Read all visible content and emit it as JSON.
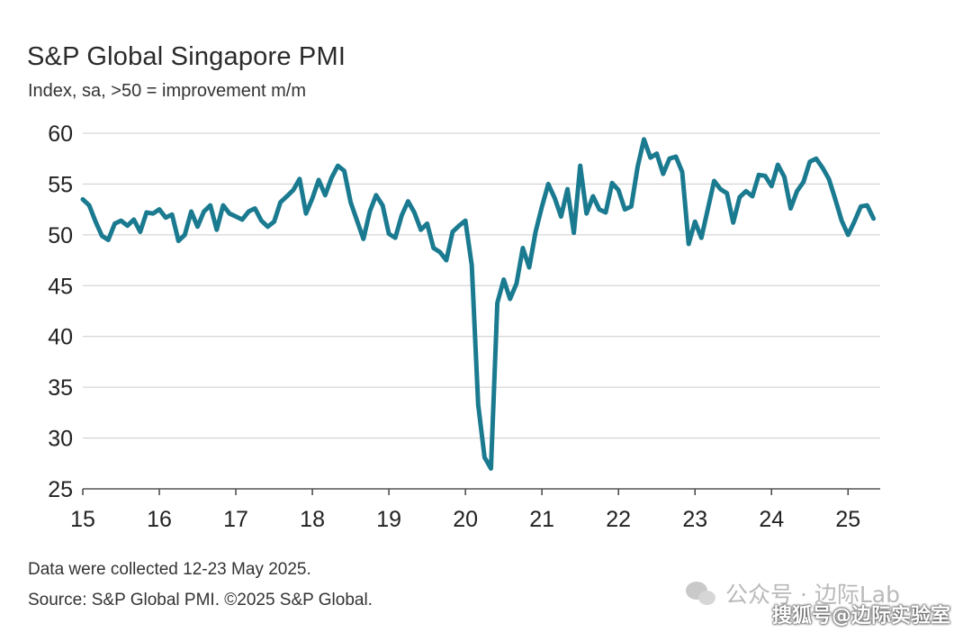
{
  "header": {
    "title": "S&P Global Singapore PMI",
    "subtitle": "Index, sa, >50 = improvement m/m"
  },
  "footer": {
    "note": "Data were collected 12-23 May 2025.",
    "source": "Source: S&P Global PMI. ©2025 S&P Global."
  },
  "watermarks": {
    "wechat": "公众号 · 边际Lab",
    "sohu": "搜狐号@边际实验室"
  },
  "colors": {
    "line": "#1a7a90",
    "grid": "#cccccc",
    "text": "#222222"
  },
  "chart_data": {
    "type": "line",
    "title": "S&P Global Singapore PMI",
    "subtitle": "Index, sa, >50 = improvement m/m",
    "xlabel": "",
    "ylabel": "",
    "ylim": [
      25,
      60
    ],
    "yticks": [
      25,
      30,
      35,
      40,
      45,
      50,
      55,
      60
    ],
    "xlim": [
      2015.0,
      2025.42
    ],
    "xtick_positions": [
      2015,
      2016,
      2017,
      2018,
      2019,
      2020,
      2021,
      2022,
      2023,
      2024,
      2025
    ],
    "xtick_labels": [
      "15",
      "16",
      "17",
      "18",
      "19",
      "20",
      "21",
      "22",
      "23",
      "24",
      "25"
    ],
    "grid": true,
    "legend": "none",
    "series": [
      {
        "x": [
          2015.0,
          2015.083,
          2015.167,
          2015.25,
          2015.333,
          2015.417,
          2015.5,
          2015.583,
          2015.667,
          2015.75,
          2015.833,
          2015.917,
          2016.0,
          2016.083,
          2016.167,
          2016.25,
          2016.333,
          2016.417,
          2016.5,
          2016.583,
          2016.667,
          2016.75,
          2016.833,
          2016.917,
          2017.0,
          2017.083,
          2017.167,
          2017.25,
          2017.333,
          2017.417,
          2017.5,
          2017.583,
          2017.667,
          2017.75,
          2017.833,
          2017.917,
          2018.0,
          2018.083,
          2018.167,
          2018.25,
          2018.333,
          2018.417,
          2018.5,
          2018.583,
          2018.667,
          2018.75,
          2018.833,
          2018.917,
          2019.0,
          2019.083,
          2019.167,
          2019.25,
          2019.333,
          2019.417,
          2019.5,
          2019.583,
          2019.667,
          2019.75,
          2019.833,
          2019.917,
          2020.0,
          2020.083,
          2020.167,
          2020.25,
          2020.333,
          2020.417,
          2020.5,
          2020.583,
          2020.667,
          2020.75,
          2020.833,
          2020.917,
          2021.0,
          2021.083,
          2021.167,
          2021.25,
          2021.333,
          2021.417,
          2021.5,
          2021.583,
          2021.667,
          2021.75,
          2021.833,
          2021.917,
          2022.0,
          2022.083,
          2022.167,
          2022.25,
          2022.333,
          2022.417,
          2022.5,
          2022.583,
          2022.667,
          2022.75,
          2022.833,
          2022.917,
          2023.0,
          2023.083,
          2023.167,
          2023.25,
          2023.333,
          2023.417,
          2023.5,
          2023.583,
          2023.667,
          2023.75,
          2023.833,
          2023.917,
          2024.0,
          2024.083,
          2024.167,
          2024.25,
          2024.333,
          2024.417,
          2024.5,
          2024.583,
          2024.667,
          2024.75,
          2024.833,
          2024.917,
          2025.0,
          2025.083,
          2025.167,
          2025.25,
          2025.333
        ],
        "values": [
          53.5,
          52.9,
          51.3,
          49.9,
          49.5,
          51.1,
          51.4,
          50.9,
          51.5,
          50.3,
          52.2,
          52.1,
          52.5,
          51.7,
          52.0,
          49.4,
          50.0,
          52.3,
          50.8,
          52.3,
          52.9,
          50.5,
          52.9,
          52.1,
          51.8,
          51.5,
          52.3,
          52.6,
          51.4,
          50.8,
          51.3,
          53.2,
          53.8,
          54.4,
          55.5,
          52.1,
          53.6,
          55.4,
          53.9,
          55.6,
          56.8,
          56.3,
          53.2,
          51.4,
          49.6,
          52.3,
          53.9,
          52.9,
          50.1,
          49.7,
          51.9,
          53.3,
          52.2,
          50.5,
          51.1,
          48.7,
          48.3,
          47.5,
          50.3,
          50.9,
          51.4,
          47.0,
          33.3,
          28.1,
          27.0,
          43.3,
          45.6,
          43.7,
          45.2,
          48.7,
          46.8,
          50.3,
          52.8,
          55.0,
          53.6,
          51.8,
          54.5,
          50.2,
          56.8,
          52.1,
          53.8,
          52.5,
          52.2,
          55.1,
          54.4,
          52.5,
          52.8,
          56.7,
          59.4,
          57.6,
          58.0,
          56.0,
          57.5,
          57.7,
          56.2,
          49.1,
          51.3,
          49.7,
          52.5,
          55.3,
          54.5,
          54.1,
          51.2,
          53.7,
          54.3,
          53.8,
          55.9,
          55.8,
          54.8,
          56.9,
          55.7,
          52.6,
          54.3,
          55.2,
          57.2,
          57.5,
          56.6,
          55.5,
          53.5,
          51.4,
          50.0,
          51.3,
          52.8,
          52.9,
          51.6
        ]
      }
    ]
  }
}
